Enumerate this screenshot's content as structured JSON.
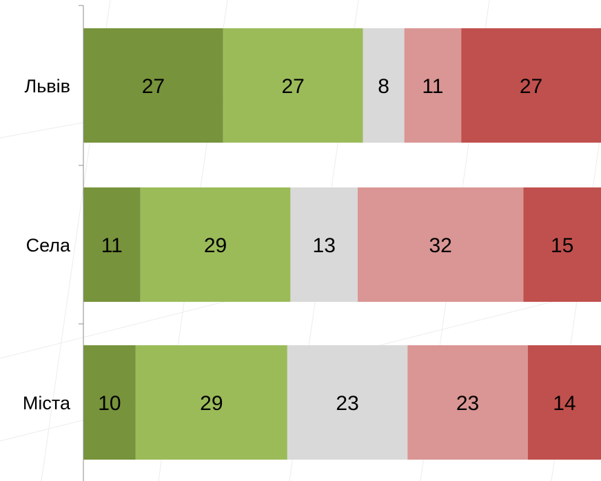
{
  "chart_data": {
    "type": "bar",
    "orientation": "horizontal",
    "stacked": true,
    "categories": [
      "Львів",
      "Села",
      "Міста"
    ],
    "series": [
      {
        "values": [
          27,
          11,
          10
        ],
        "color": "#77933c"
      },
      {
        "values": [
          27,
          29,
          29
        ],
        "color": "#9bbb59"
      },
      {
        "values": [
          8,
          13,
          23
        ],
        "color": "#d9d9d9"
      },
      {
        "values": [
          11,
          32,
          23
        ],
        "color": "#d99694"
      },
      {
        "values": [
          27,
          15,
          14
        ],
        "color": "#c0504d"
      }
    ],
    "xlim": [
      0,
      100
    ],
    "grid": false,
    "title": "",
    "xlabel": "",
    "ylabel": ""
  }
}
